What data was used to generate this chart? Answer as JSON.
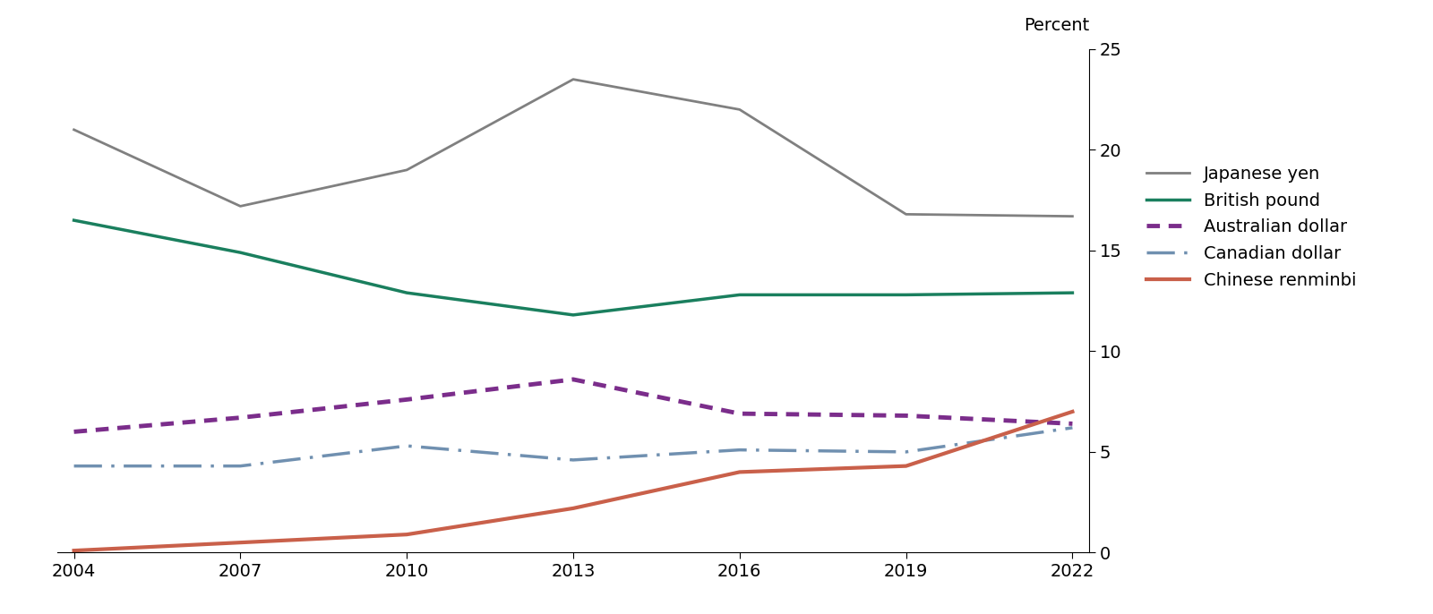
{
  "years": [
    2004,
    2007,
    2010,
    2013,
    2016,
    2019,
    2022
  ],
  "series": {
    "Japanese yen": {
      "values": [
        21.0,
        17.2,
        19.0,
        23.5,
        22.0,
        16.8,
        16.7
      ],
      "color": "#808080",
      "linewidth": 2.0
    },
    "British pound": {
      "values": [
        16.5,
        14.9,
        12.9,
        11.8,
        12.8,
        12.8,
        12.9
      ],
      "color": "#1a7f5e",
      "linewidth": 2.5
    },
    "Australian dollar": {
      "values": [
        6.0,
        6.7,
        7.6,
        8.6,
        6.9,
        6.8,
        6.4
      ],
      "color": "#7b2d8b",
      "linewidth": 3.5
    },
    "Canadian dollar": {
      "values": [
        4.3,
        4.3,
        5.3,
        4.6,
        5.1,
        5.0,
        6.2
      ],
      "color": "#7090b0",
      "linewidth": 2.5
    },
    "Chinese renminbi": {
      "values": [
        0.1,
        0.5,
        0.9,
        2.2,
        4.0,
        4.3,
        7.0
      ],
      "color": "#c9604a",
      "linewidth": 3.0
    }
  },
  "ylabel": "Percent",
  "ylim": [
    0,
    25
  ],
  "yticks": [
    0,
    5,
    10,
    15,
    20,
    25
  ],
  "xlim_left": 2004,
  "xlim_right": 2022,
  "xticks": [
    2004,
    2007,
    2010,
    2013,
    2016,
    2019,
    2022
  ],
  "legend_order": [
    "Japanese yen",
    "British pound",
    "Australian dollar",
    "Canadian dollar",
    "Chinese renminbi"
  ],
  "background_color": "#ffffff",
  "tick_fontsize": 14,
  "label_fontsize": 14,
  "legend_fontsize": 14
}
